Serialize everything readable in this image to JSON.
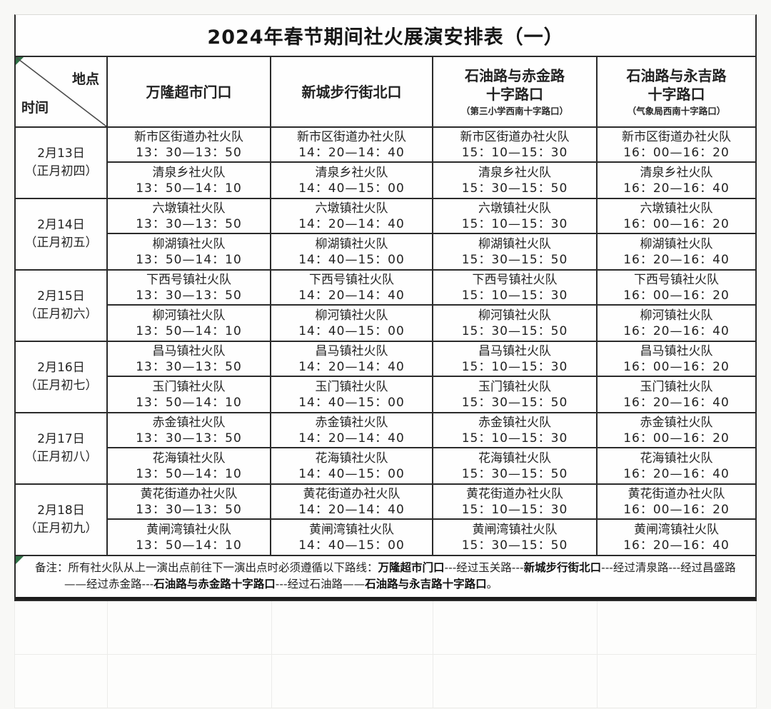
{
  "title": "2024年春节期间社火展演安排表（一）",
  "header": {
    "corner": {
      "top_right": "地点",
      "bottom_left": "时间"
    },
    "columns": [
      {
        "line1": "万隆超市门口",
        "line2": "",
        "sub": ""
      },
      {
        "line1": "新城步行街北口",
        "line2": "",
        "sub": ""
      },
      {
        "line1": "石油路与赤金路",
        "line2": "十字路口",
        "sub": "（第三小学西南十字路口）"
      },
      {
        "line1": "石油路与永吉路",
        "line2": "十字路口",
        "sub": "（气象局西南十字路口）"
      }
    ]
  },
  "schedule": {
    "time_slots": [
      [
        "13：30—13：50",
        "13：50—14：10"
      ],
      [
        "14：20—14：40",
        "14：40—15：00"
      ],
      [
        "15：10—15：30",
        "15：30—15：50"
      ],
      [
        "16：00—16：20",
        "16：20—16：40"
      ]
    ],
    "days": [
      {
        "date": "2月13日",
        "lunar": "（正月初四）",
        "teams": [
          "新市区街道办社火队",
          "清泉乡社火队"
        ]
      },
      {
        "date": "2月14日",
        "lunar": "（正月初五）",
        "teams": [
          "六墩镇社火队",
          "柳湖镇社火队"
        ]
      },
      {
        "date": "2月15日",
        "lunar": "（正月初六）",
        "teams": [
          "下西号镇社火队",
          "柳河镇社火队"
        ]
      },
      {
        "date": "2月16日",
        "lunar": "（正月初七）",
        "teams": [
          "昌马镇社火队",
          "玉门镇社火队"
        ]
      },
      {
        "date": "2月17日",
        "lunar": "（正月初八）",
        "teams": [
          "赤金镇社火队",
          "花海镇社火队"
        ]
      },
      {
        "date": "2月18日",
        "lunar": "（正月初九）",
        "teams": [
          "黄花街道办社火队",
          "黄闸湾镇社火队"
        ]
      }
    ]
  },
  "note": {
    "segments": [
      {
        "text": "备注：所有社火队从上一演出点前往下一演出点时必须遵循以下路线：",
        "bold": false
      },
      {
        "text": "万隆超市门口",
        "bold": true
      },
      {
        "text": "---经过玉关路---",
        "bold": false
      },
      {
        "text": "新城步行街北口",
        "bold": true
      },
      {
        "text": "---经过清泉路---经过昌盛路——经过赤金路---",
        "bold": false
      },
      {
        "text": "石油路与赤金路十字路口",
        "bold": true
      },
      {
        "text": "---经过石油路——",
        "bold": false
      },
      {
        "text": "石油路与永吉路十字路口",
        "bold": true
      },
      {
        "text": "。",
        "bold": false
      }
    ]
  },
  "empty_grid": {
    "rows": 2,
    "cols": 5
  },
  "colors": {
    "border": "#2b2b2b",
    "text": "#1f1f1f",
    "indicator_green": "#2e7045",
    "faint_grid": "#ececea"
  }
}
